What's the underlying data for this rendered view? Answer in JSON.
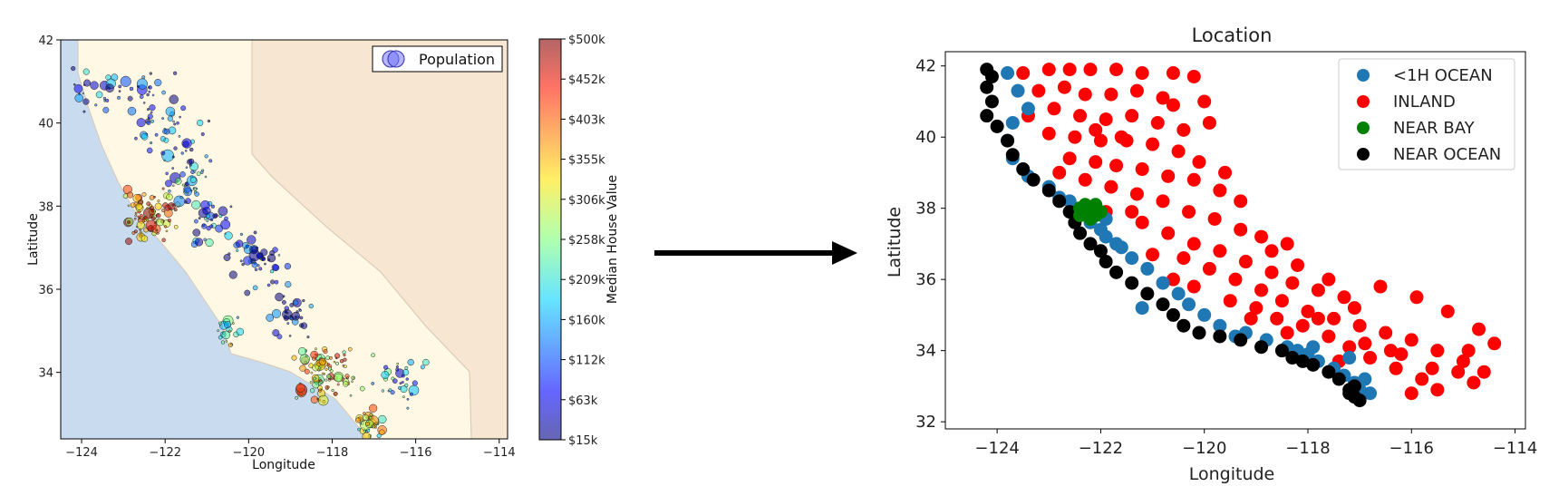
{
  "colors": {
    "ocean": "#c9dcef",
    "land": "#fff8e4",
    "neighbor_land": "#f7e6d2",
    "border": "#d9c8b4",
    "<1H OCEAN": "#1f77b4",
    "INLAND": "#ff0000",
    "NEAR BAY": "#008000",
    "NEAR OCEAN": "#000000"
  },
  "arrow": {
    "direction": "right"
  },
  "chart_data": [
    {
      "type": "scatter",
      "title": "",
      "xlabel": "Longitude",
      "ylabel": "Latitude",
      "xlim": [
        -124.5,
        -113.8
      ],
      "ylim": [
        32.4,
        42.0
      ],
      "xticks": [
        -124,
        -122,
        -120,
        -118,
        -116,
        -114
      ],
      "yticks": [
        34,
        36,
        38,
        40,
        42
      ],
      "xtick_labels": [
        "−124",
        "−122",
        "−120",
        "−118",
        "−116",
        "−114"
      ],
      "ytick_labels": [
        "34",
        "36",
        "38",
        "40",
        "42"
      ],
      "background": "California map",
      "legend": {
        "placement": "top-right",
        "entries": [
          "Population"
        ]
      },
      "colorbar": {
        "label": "Median House Value",
        "ticks": [
          "$15k",
          "$63k",
          "$112k",
          "$160k",
          "$209k",
          "$258k",
          "$306k",
          "$355k",
          "$403k",
          "$452k",
          "$500k"
        ],
        "range": [
          15000,
          500000
        ],
        "colormap": "jet"
      }
    },
    {
      "type": "scatter",
      "title": "Location",
      "xlabel": "Longitude",
      "ylabel": "Latitude",
      "xlim": [
        -125,
        -113.8
      ],
      "ylim": [
        31.8,
        42.4
      ],
      "xticks": [
        -124,
        -122,
        -120,
        -118,
        -116,
        -114
      ],
      "yticks": [
        32,
        34,
        36,
        38,
        40,
        42
      ],
      "xtick_labels": [
        "−124",
        "−122",
        "−120",
        "−118",
        "−116",
        "−114"
      ],
      "ytick_labels": [
        "32",
        "34",
        "36",
        "38",
        "40",
        "42"
      ],
      "legend": {
        "placement": "top-right"
      },
      "series": [
        {
          "name": "<1H OCEAN",
          "color": "#1f77b4",
          "points": [
            [
              -123.8,
              41.8
            ],
            [
              -123.6,
              41.3
            ],
            [
              -123.4,
              40.8
            ],
            [
              -123.7,
              40.4
            ],
            [
              -123.8,
              39.9
            ],
            [
              -123.7,
              39.4
            ],
            [
              -123.4,
              38.9
            ],
            [
              -123.0,
              38.6
            ],
            [
              -122.8,
              38.3
            ],
            [
              -122.5,
              38.0
            ],
            [
              -122.2,
              37.6
            ],
            [
              -121.9,
              37.2
            ],
            [
              -121.6,
              36.9
            ],
            [
              -121.4,
              36.6
            ],
            [
              -121.1,
              36.3
            ],
            [
              -120.8,
              35.9
            ],
            [
              -120.5,
              35.6
            ],
            [
              -120.3,
              35.3
            ],
            [
              -120.0,
              35.0
            ],
            [
              -119.7,
              34.7
            ],
            [
              -119.2,
              34.5
            ],
            [
              -118.8,
              34.3
            ],
            [
              -118.4,
              34.1
            ],
            [
              -118.0,
              33.9
            ],
            [
              -117.8,
              33.7
            ],
            [
              -117.5,
              33.5
            ],
            [
              -117.3,
              33.3
            ],
            [
              -117.1,
              33.1
            ],
            [
              -117.0,
              32.9
            ],
            [
              -116.8,
              32.8
            ],
            [
              -118.2,
              34.0
            ],
            [
              -117.9,
              34.1
            ],
            [
              -122.0,
              37.4
            ],
            [
              -121.9,
              37.7
            ],
            [
              -121.7,
              37.0
            ],
            [
              -119.4,
              34.4
            ],
            [
              -117.2,
              33.8
            ],
            [
              -116.9,
              33.2
            ],
            [
              -121.2,
              35.2
            ],
            [
              -122.6,
              38.2
            ]
          ]
        },
        {
          "name": "INLAND",
          "color": "#ff0000",
          "points": [
            [
              -123.5,
              41.8
            ],
            [
              -123.0,
              41.9
            ],
            [
              -122.6,
              41.9
            ],
            [
              -122.2,
              41.9
            ],
            [
              -121.7,
              41.9
            ],
            [
              -121.2,
              41.8
            ],
            [
              -120.6,
              41.8
            ],
            [
              -120.2,
              41.7
            ],
            [
              -123.2,
              41.3
            ],
            [
              -122.7,
              41.4
            ],
            [
              -122.3,
              41.2
            ],
            [
              -121.8,
              41.2
            ],
            [
              -121.3,
              41.3
            ],
            [
              -120.8,
              41.1
            ],
            [
              -123.4,
              40.6
            ],
            [
              -122.9,
              40.8
            ],
            [
              -122.4,
              40.6
            ],
            [
              -121.9,
              40.5
            ],
            [
              -121.4,
              40.6
            ],
            [
              -120.9,
              40.4
            ],
            [
              -120.4,
              40.2
            ],
            [
              -123.0,
              40.1
            ],
            [
              -122.5,
              40.0
            ],
            [
              -122.0,
              39.9
            ],
            [
              -121.5,
              39.9
            ],
            [
              -121.0,
              39.8
            ],
            [
              -120.5,
              39.6
            ],
            [
              -120.1,
              39.3
            ],
            [
              -122.6,
              39.4
            ],
            [
              -122.1,
              39.3
            ],
            [
              -121.7,
              39.2
            ],
            [
              -121.2,
              39.1
            ],
            [
              -120.7,
              38.9
            ],
            [
              -120.2,
              38.8
            ],
            [
              -119.7,
              38.5
            ],
            [
              -119.3,
              38.2
            ],
            [
              -121.8,
              38.6
            ],
            [
              -121.3,
              38.4
            ],
            [
              -120.8,
              38.2
            ],
            [
              -120.3,
              37.9
            ],
            [
              -119.8,
              37.7
            ],
            [
              -119.3,
              37.4
            ],
            [
              -118.9,
              37.2
            ],
            [
              -118.4,
              37.0
            ],
            [
              -121.2,
              37.6
            ],
            [
              -120.7,
              37.3
            ],
            [
              -120.2,
              37.0
            ],
            [
              -119.7,
              36.8
            ],
            [
              -119.2,
              36.5
            ],
            [
              -118.7,
              36.2
            ],
            [
              -118.3,
              35.9
            ],
            [
              -117.8,
              35.7
            ],
            [
              -117.3,
              35.5
            ],
            [
              -120.4,
              36.6
            ],
            [
              -119.9,
              36.3
            ],
            [
              -119.4,
              36.0
            ],
            [
              -118.9,
              35.7
            ],
            [
              -118.5,
              35.4
            ],
            [
              -118.0,
              35.1
            ],
            [
              -117.5,
              34.9
            ],
            [
              -117.0,
              34.7
            ],
            [
              -116.5,
              34.5
            ],
            [
              -116.0,
              34.3
            ],
            [
              -115.5,
              34.0
            ],
            [
              -115.0,
              33.7
            ],
            [
              -114.6,
              33.4
            ],
            [
              -119.5,
              35.4
            ],
            [
              -119.0,
              35.2
            ],
            [
              -118.6,
              34.9
            ],
            [
              -118.1,
              34.7
            ],
            [
              -117.6,
              34.4
            ],
            [
              -117.2,
              34.1
            ],
            [
              -116.8,
              33.8
            ],
            [
              -116.3,
              33.5
            ],
            [
              -115.8,
              33.2
            ],
            [
              -115.5,
              32.9
            ],
            [
              -116.0,
              32.8
            ],
            [
              -114.7,
              34.6
            ],
            [
              -114.4,
              34.2
            ],
            [
              -114.8,
              33.1
            ],
            [
              -116.6,
              35.8
            ],
            [
              -115.9,
              35.5
            ],
            [
              -115.3,
              35.1
            ],
            [
              -120.0,
              41.0
            ],
            [
              -119.9,
              40.4
            ],
            [
              -121.6,
              40.0
            ],
            [
              -122.8,
              39.0
            ],
            [
              -121.4,
              37.9
            ],
            [
              -120.6,
              36.0
            ],
            [
              -118.2,
              36.4
            ],
            [
              -117.8,
              34.9
            ],
            [
              -116.9,
              34.2
            ],
            [
              -116.2,
              33.9
            ],
            [
              -115.6,
              33.5
            ],
            [
              -117.4,
              33.7
            ],
            [
              -118.4,
              34.5
            ],
            [
              -119.1,
              34.9
            ],
            [
              -120.2,
              35.8
            ],
            [
              -121.0,
              36.7
            ],
            [
              -121.9,
              37.9
            ],
            [
              -122.3,
              38.8
            ],
            [
              -120.6,
              40.9
            ],
            [
              -122.1,
              40.2
            ],
            [
              -119.6,
              39.0
            ],
            [
              -118.7,
              36.8
            ],
            [
              -117.1,
              35.2
            ],
            [
              -116.4,
              34.0
            ],
            [
              -115.1,
              33.4
            ],
            [
              -114.9,
              34.0
            ],
            [
              -117.6,
              36.0
            ]
          ]
        },
        {
          "name": "NEAR BAY",
          "color": "#008000",
          "points": [
            [
              -122.4,
              37.8
            ],
            [
              -122.3,
              37.9
            ],
            [
              -122.2,
              38.0
            ],
            [
              -122.1,
              37.8
            ],
            [
              -122.3,
              38.1
            ],
            [
              -122.2,
              37.7
            ],
            [
              -122.0,
              37.9
            ],
            [
              -122.4,
              38.0
            ],
            [
              -122.1,
              38.1
            ],
            [
              -122.2,
              37.9
            ]
          ]
        },
        {
          "name": "NEAR OCEAN",
          "color": "#000000",
          "points": [
            [
              -124.2,
              41.9
            ],
            [
              -124.1,
              41.7
            ],
            [
              -124.2,
              41.4
            ],
            [
              -124.1,
              41.0
            ],
            [
              -124.2,
              40.6
            ],
            [
              -124.0,
              40.3
            ],
            [
              -123.8,
              39.9
            ],
            [
              -123.7,
              39.5
            ],
            [
              -123.5,
              39.1
            ],
            [
              -123.3,
              38.8
            ],
            [
              -123.0,
              38.5
            ],
            [
              -122.8,
              38.2
            ],
            [
              -122.6,
              37.9
            ],
            [
              -122.5,
              37.6
            ],
            [
              -122.4,
              37.3
            ],
            [
              -122.2,
              37.0
            ],
            [
              -122.0,
              36.8
            ],
            [
              -121.9,
              36.5
            ],
            [
              -121.7,
              36.2
            ],
            [
              -121.4,
              35.9
            ],
            [
              -121.1,
              35.6
            ],
            [
              -120.8,
              35.3
            ],
            [
              -120.6,
              35.0
            ],
            [
              -120.4,
              34.7
            ],
            [
              -120.1,
              34.5
            ],
            [
              -119.7,
              34.4
            ],
            [
              -119.3,
              34.3
            ],
            [
              -118.9,
              34.1
            ],
            [
              -118.5,
              34.0
            ],
            [
              -118.3,
              33.8
            ],
            [
              -118.1,
              33.7
            ],
            [
              -117.9,
              33.6
            ],
            [
              -117.6,
              33.4
            ],
            [
              -117.4,
              33.2
            ],
            [
              -117.2,
              32.9
            ],
            [
              -117.1,
              32.7
            ],
            [
              -117.0,
              32.6
            ],
            [
              -117.2,
              32.8
            ],
            [
              -117.1,
              33.0
            ]
          ]
        }
      ]
    }
  ]
}
